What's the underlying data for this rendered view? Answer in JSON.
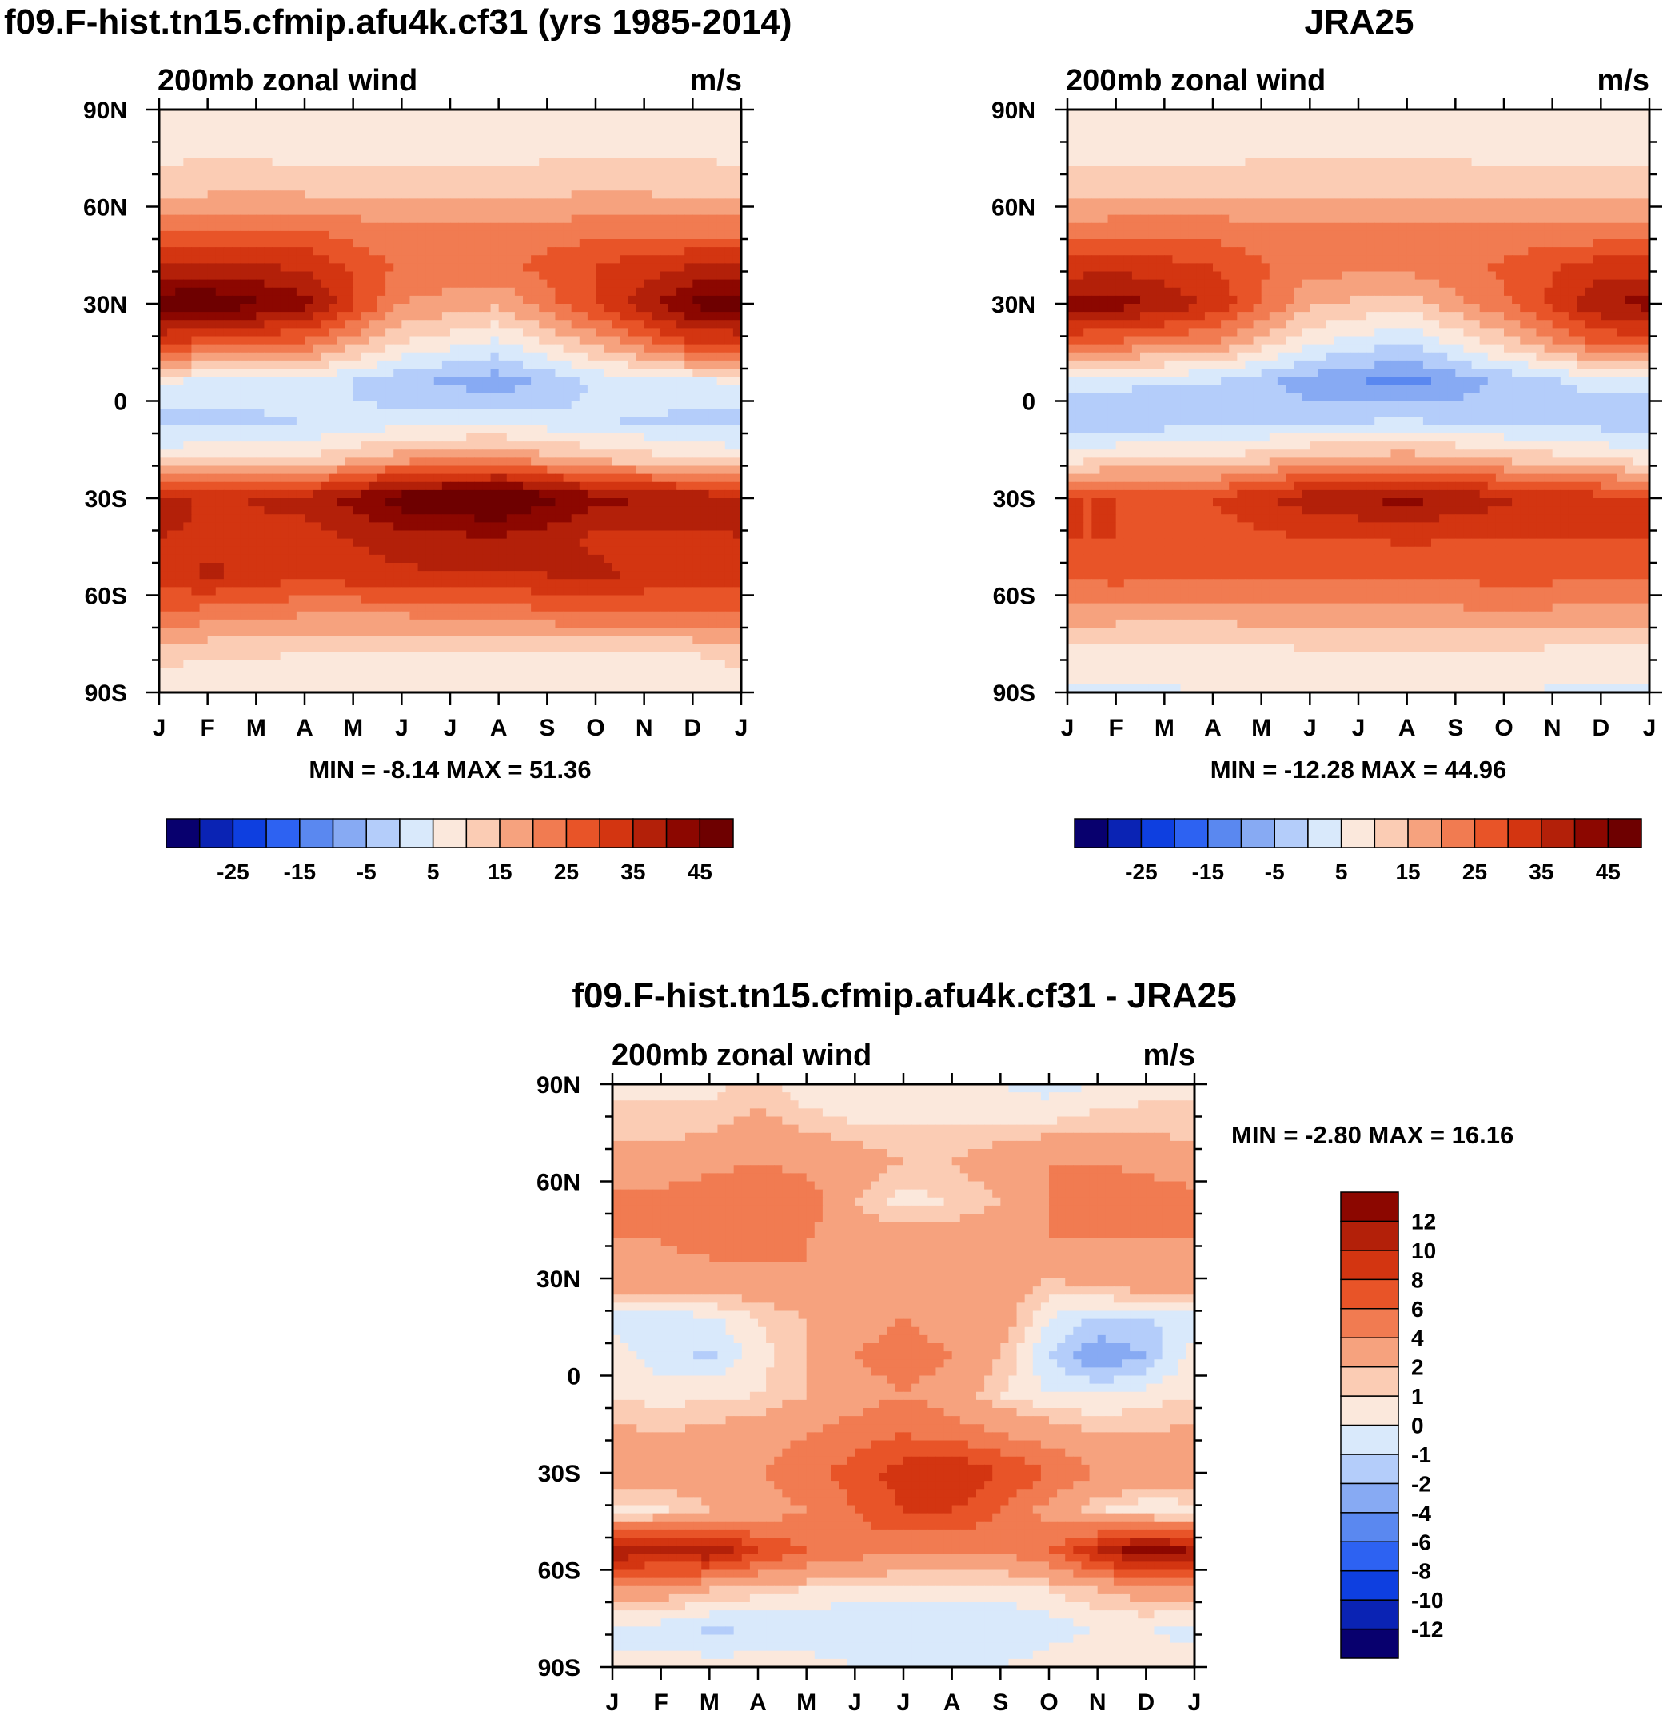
{
  "chart_data": [
    {
      "type": "heatmap",
      "id": "model",
      "title": "f09.F-hist.tn15.cfmip.afu4k.cf31 (yrs 1985-2014)",
      "left_label": "200mb zonal wind",
      "right_label": "m/s",
      "x_tick_labels": [
        "J",
        "F",
        "M",
        "A",
        "M",
        "J",
        "J",
        "A",
        "S",
        "O",
        "N",
        "D",
        "J"
      ],
      "y_tick_labels": [
        "90N",
        "60N",
        "30N",
        "0",
        "30S",
        "60S",
        "90S"
      ],
      "y_tick_values": [
        90,
        60,
        30,
        0,
        -30,
        -60,
        -90
      ],
      "xlim": [
        0,
        12
      ],
      "ylim": [
        -90,
        90
      ],
      "stats": "MIN =  -8.14 MAX =  51.36",
      "min": -8.14,
      "max": 51.36,
      "colorbar": {
        "orientation": "horizontal",
        "levels": [
          -30,
          -25,
          -20,
          -15,
          -10,
          -5,
          0,
          5,
          10,
          15,
          20,
          25,
          30,
          35,
          40,
          45
        ],
        "labels": [
          "-25",
          "-15",
          "-5",
          "5",
          "15",
          "25",
          "35",
          "45"
        ],
        "colors": [
          "#08006e",
          "#0a23b4",
          "#0e3fe0",
          "#2d62f2",
          "#5a88f0",
          "#87aaf3",
          "#b4cdfa",
          "#d9e9fb",
          "#fbe8dc",
          "#fbccb4",
          "#f6a27e",
          "#f17b51",
          "#e85428",
          "#d33511",
          "#b32009",
          "#8c0700",
          "#6e0000"
        ]
      },
      "profile_note": "lat profiles at 16 lats [90N..90S step 12]; values are m/s",
      "profiles": [
        {
          "month": 0,
          "values": [
            6,
            8,
            12,
            22,
            35,
            49,
            30,
            5,
            -2,
            8,
            38,
            35,
            32,
            25,
            12,
            6
          ]
        },
        {
          "month": 1,
          "values": [
            6,
            9,
            13,
            24,
            36,
            50,
            28,
            4,
            -2,
            10,
            34,
            34,
            36,
            22,
            11,
            6
          ]
        },
        {
          "month": 3,
          "values": [
            5,
            8,
            13,
            24,
            34,
            42,
            24,
            3,
            0,
            10,
            37,
            33,
            31,
            20,
            10,
            6
          ]
        },
        {
          "month": 5,
          "values": [
            6,
            8,
            12,
            20,
            24,
            20,
            10,
            -4,
            2,
            18,
            48,
            38,
            34,
            20,
            9,
            6
          ]
        },
        {
          "month": 7,
          "values": [
            6,
            8,
            12,
            20,
            24,
            16,
            4,
            -8,
            3,
            20,
            52,
            40,
            34,
            22,
            9,
            6
          ]
        },
        {
          "month": 9,
          "values": [
            6,
            9,
            14,
            22,
            30,
            30,
            16,
            1,
            0,
            14,
            42,
            34,
            36,
            24,
            10,
            6
          ]
        },
        {
          "month": 11,
          "values": [
            6,
            9,
            13,
            22,
            35,
            46,
            30,
            4,
            -1,
            10,
            38,
            34,
            32,
            24,
            10,
            6
          ]
        },
        {
          "month": 12,
          "values": [
            6,
            8,
            12,
            22,
            35,
            49,
            30,
            5,
            -2,
            8,
            38,
            35,
            32,
            25,
            12,
            6
          ]
        }
      ]
    },
    {
      "type": "heatmap",
      "id": "obs",
      "title": "JRA25",
      "left_label": "200mb zonal wind",
      "right_label": "m/s",
      "x_tick_labels": [
        "J",
        "F",
        "M",
        "A",
        "M",
        "J",
        "J",
        "A",
        "S",
        "O",
        "N",
        "D",
        "J"
      ],
      "y_tick_labels": [
        "90N",
        "60N",
        "30N",
        "0",
        "30S",
        "60S",
        "90S"
      ],
      "y_tick_values": [
        90,
        60,
        30,
        0,
        -30,
        -60,
        -90
      ],
      "xlim": [
        0,
        12
      ],
      "ylim": [
        -90,
        90
      ],
      "stats": "MIN = -12.28 MAX =  44.96",
      "min": -12.28,
      "max": 44.96,
      "colorbar": {
        "orientation": "horizontal",
        "levels": [
          -30,
          -25,
          -20,
          -15,
          -10,
          -5,
          0,
          5,
          10,
          15,
          20,
          25,
          30,
          35,
          40,
          45
        ],
        "labels": [
          "-25",
          "-15",
          "-5",
          "5",
          "15",
          "25",
          "35",
          "45"
        ],
        "colors": [
          "#08006e",
          "#0a23b4",
          "#0e3fe0",
          "#2d62f2",
          "#5a88f0",
          "#87aaf3",
          "#b4cdfa",
          "#d9e9fb",
          "#fbe8dc",
          "#fbccb4",
          "#f6a27e",
          "#f17b51",
          "#e85428",
          "#d33511",
          "#b32009",
          "#8c0700",
          "#6e0000"
        ]
      },
      "profile_note": "lat profiles at 16 lats [90N..90S step 12]; values are m/s",
      "profiles": [
        {
          "month": 0,
          "values": [
            5,
            8,
            12,
            20,
            32,
            42,
            26,
            2,
            -4,
            8,
            30,
            30,
            26,
            18,
            8,
            4
          ]
        },
        {
          "month": 1,
          "values": [
            5,
            8,
            13,
            22,
            33,
            43,
            24,
            1,
            -4,
            10,
            30,
            30,
            27,
            17,
            8,
            4
          ]
        },
        {
          "month": 3,
          "values": [
            5,
            8,
            13,
            22,
            30,
            34,
            20,
            0,
            -2,
            10,
            30,
            28,
            25,
            17,
            8,
            5
          ]
        },
        {
          "month": 5,
          "values": [
            6,
            9,
            13,
            20,
            22,
            16,
            6,
            -8,
            -1,
            16,
            38,
            30,
            25,
            17,
            9,
            6
          ]
        },
        {
          "month": 7,
          "values": [
            6,
            9,
            13,
            20,
            22,
            12,
            0,
            -12,
            0,
            18,
            42,
            31,
            25,
            18,
            9,
            6
          ]
        },
        {
          "month": 9,
          "values": [
            5,
            8,
            13,
            20,
            26,
            24,
            12,
            -4,
            -2,
            14,
            36,
            30,
            27,
            19,
            9,
            5
          ]
        },
        {
          "month": 11,
          "values": [
            5,
            8,
            12,
            20,
            32,
            40,
            26,
            2,
            -3,
            10,
            32,
            30,
            26,
            18,
            8,
            4
          ]
        },
        {
          "month": 12,
          "values": [
            5,
            8,
            12,
            20,
            32,
            42,
            26,
            2,
            -4,
            8,
            30,
            30,
            26,
            18,
            8,
            4
          ]
        }
      ]
    },
    {
      "type": "heatmap",
      "id": "diff",
      "title": "f09.F-hist.tn15.cfmip.afu4k.cf31 - JRA25",
      "left_label": "200mb zonal wind",
      "right_label": "m/s",
      "x_tick_labels": [
        "J",
        "F",
        "M",
        "A",
        "M",
        "J",
        "J",
        "A",
        "S",
        "O",
        "N",
        "D",
        "J"
      ],
      "y_tick_labels": [
        "90N",
        "60N",
        "30N",
        "0",
        "30S",
        "60S",
        "90S"
      ],
      "y_tick_values": [
        90,
        60,
        30,
        0,
        -30,
        -60,
        -90
      ],
      "xlim": [
        0,
        12
      ],
      "ylim": [
        -90,
        90
      ],
      "stats": "MIN =  -2.80 MAX =  16.16",
      "min": -2.8,
      "max": 16.16,
      "colorbar": {
        "orientation": "vertical",
        "levels": [
          -12,
          -10,
          -8,
          -6,
          -4,
          -2,
          -1,
          0,
          1,
          2,
          4,
          6,
          8,
          10,
          12
        ],
        "labels": [
          "12",
          "10",
          "8",
          "6",
          "4",
          "2",
          "1",
          "0",
          "-1",
          "-2",
          "-4",
          "-6",
          "-8",
          "-10",
          "-12"
        ],
        "colors": [
          "#08006e",
          "#0a23b4",
          "#0e3fe0",
          "#2d62f2",
          "#5a88f0",
          "#87aaf3",
          "#b4cdfa",
          "#d9e9fb",
          "#fbe8dc",
          "#fbccb4",
          "#f6a27e",
          "#f17b51",
          "#e85428",
          "#d33511",
          "#b32009",
          "#8c0700"
        ]
      },
      "profile_note": "lat profiles at 16 lats [90N..90S step 12]; values are m/s",
      "profiles": [
        {
          "month": 0,
          "values": [
            0.8,
            1.2,
            3,
            4.5,
            4,
            3.5,
            -0.5,
            0.5,
            1,
            2.5,
            4,
            0,
            12,
            3,
            -0.5,
            0.5
          ]
        },
        {
          "month": 1,
          "values": [
            0.8,
            1.2,
            3,
            4.5,
            4,
            3.5,
            -0.3,
            -0.5,
            0.5,
            2,
            3,
            0.5,
            11,
            3,
            -0.5,
            0.5
          ]
        },
        {
          "month": 2,
          "values": [
            0.5,
            1.5,
            3.5,
            5,
            4.5,
            3.5,
            -0.2,
            -1.2,
            0.8,
            2.5,
            3,
            2,
            12,
            2,
            -1.2,
            0.5
          ]
        },
        {
          "month": 3,
          "values": [
            1.5,
            2.5,
            4,
            5,
            4.5,
            3.5,
            1,
            0.5,
            1,
            3,
            4,
            3,
            8,
            1.5,
            -1,
            0.5
          ]
        },
        {
          "month": 4,
          "values": [
            0,
            1.5,
            3.5,
            5,
            4,
            4,
            2,
            2,
            2,
            4,
            5,
            4,
            6,
            1,
            -1,
            0.5
          ]
        },
        {
          "month": 5,
          "values": [
            0,
            1,
            3,
            2,
            3,
            4,
            3,
            4,
            3,
            5,
            7,
            6,
            5,
            0.5,
            -1,
            0
          ]
        },
        {
          "month": 6,
          "values": [
            0,
            1,
            2,
            0.5,
            3,
            3.5,
            4,
            5,
            4,
            6,
            9,
            8,
            4,
            0.5,
            -1,
            0
          ]
        },
        {
          "month": 7,
          "values": [
            0,
            1,
            2,
            1,
            3,
            2.5,
            3,
            4,
            3,
            5,
            10,
            8,
            4,
            0.5,
            -1,
            0
          ]
        },
        {
          "month": 8,
          "values": [
            0,
            1,
            3,
            2,
            3,
            3,
            3,
            2,
            1,
            4,
            8,
            6,
            4,
            0.5,
            -1,
            0
          ]
        },
        {
          "month": 9,
          "values": [
            -0.5,
            1,
            4,
            4,
            4,
            2,
            0,
            -1,
            0,
            3,
            6,
            3,
            6,
            1,
            -0.5,
            0.5
          ]
        },
        {
          "month": 10,
          "values": [
            0,
            1.5,
            4,
            5,
            4,
            3,
            -1,
            -3,
            0,
            2,
            4,
            1,
            10,
            2,
            0,
            1
          ]
        },
        {
          "month": 11,
          "values": [
            0.5,
            1.5,
            3.5,
            5,
            4,
            3.5,
            -1,
            -2,
            0.5,
            2,
            3,
            0,
            14,
            3,
            0,
            1
          ]
        },
        {
          "month": 12,
          "values": [
            0.8,
            1.2,
            3,
            4.5,
            4,
            3.5,
            -0.5,
            0.5,
            1,
            2.5,
            4,
            0,
            12,
            3,
            -0.5,
            0.5
          ]
        }
      ]
    }
  ]
}
